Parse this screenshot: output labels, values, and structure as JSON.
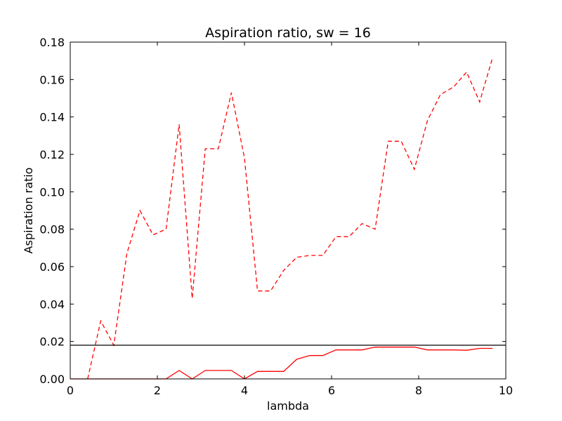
{
  "chart_data": {
    "type": "line",
    "title": "Aspiration ratio, sw = 16",
    "xlabel": "lambda",
    "ylabel": "Aspiration ratio",
    "xlim": [
      0,
      10
    ],
    "ylim": [
      0,
      0.18
    ],
    "xticks": [
      0,
      2,
      4,
      6,
      8,
      10
    ],
    "xtick_labels": [
      "0",
      "2",
      "4",
      "6",
      "8",
      "10"
    ],
    "yticks": [
      0,
      0.02,
      0.04,
      0.06,
      0.08,
      0.1,
      0.12,
      0.14,
      0.16,
      0.18
    ],
    "ytick_labels": [
      "0.00",
      "0.02",
      "0.04",
      "0.06",
      "0.08",
      "0.10",
      "0.12",
      "0.14",
      "0.16",
      "0.18"
    ],
    "grid": false,
    "series": [
      {
        "style": "dashed",
        "color": "#ff0000",
        "x": [
          0.4,
          0.7,
          1.0,
          1.3,
          1.6,
          1.9,
          2.2,
          2.5,
          2.8,
          3.1,
          3.4,
          3.7,
          4.0,
          4.3,
          4.6,
          4.9,
          5.2,
          5.5,
          5.8,
          6.1,
          6.4,
          6.7,
          7.0,
          7.3,
          7.6,
          7.9,
          8.2,
          8.5,
          8.8,
          9.1,
          9.4,
          9.7
        ],
        "y": [
          0.0,
          0.031,
          0.018,
          0.067,
          0.09,
          0.077,
          0.08,
          0.136,
          0.043,
          0.123,
          0.123,
          0.153,
          0.118,
          0.047,
          0.047,
          0.058,
          0.065,
          0.066,
          0.066,
          0.076,
          0.076,
          0.083,
          0.08,
          0.127,
          0.127,
          0.112,
          0.138,
          0.152,
          0.156,
          0.164,
          0.148,
          0.172
        ]
      },
      {
        "style": "solid",
        "color": "#ff0000",
        "x": [
          0.0,
          0.4,
          0.7,
          1.0,
          1.3,
          1.6,
          1.9,
          2.2,
          2.5,
          2.8,
          3.1,
          3.4,
          3.7,
          4.0,
          4.3,
          4.6,
          4.9,
          5.2,
          5.5,
          5.8,
          6.1,
          6.4,
          6.7,
          7.0,
          7.3,
          7.6,
          7.9,
          8.2,
          8.5,
          8.8,
          9.1,
          9.4,
          9.7
        ],
        "y": [
          0.0,
          0.0,
          0.0,
          0.0,
          0.0,
          0.0,
          0.0,
          0.0,
          0.0045,
          0.0,
          0.0045,
          0.0045,
          0.0045,
          0.0,
          0.004,
          0.004,
          0.004,
          0.0105,
          0.0125,
          0.0125,
          0.0155,
          0.0155,
          0.0155,
          0.017,
          0.017,
          0.017,
          0.017,
          0.0155,
          0.0155,
          0.0155,
          0.0153,
          0.0163,
          0.0163
        ]
      },
      {
        "style": "solid",
        "color": "#000000",
        "x": [
          0,
          10
        ],
        "y": [
          0.018,
          0.018
        ]
      }
    ]
  }
}
